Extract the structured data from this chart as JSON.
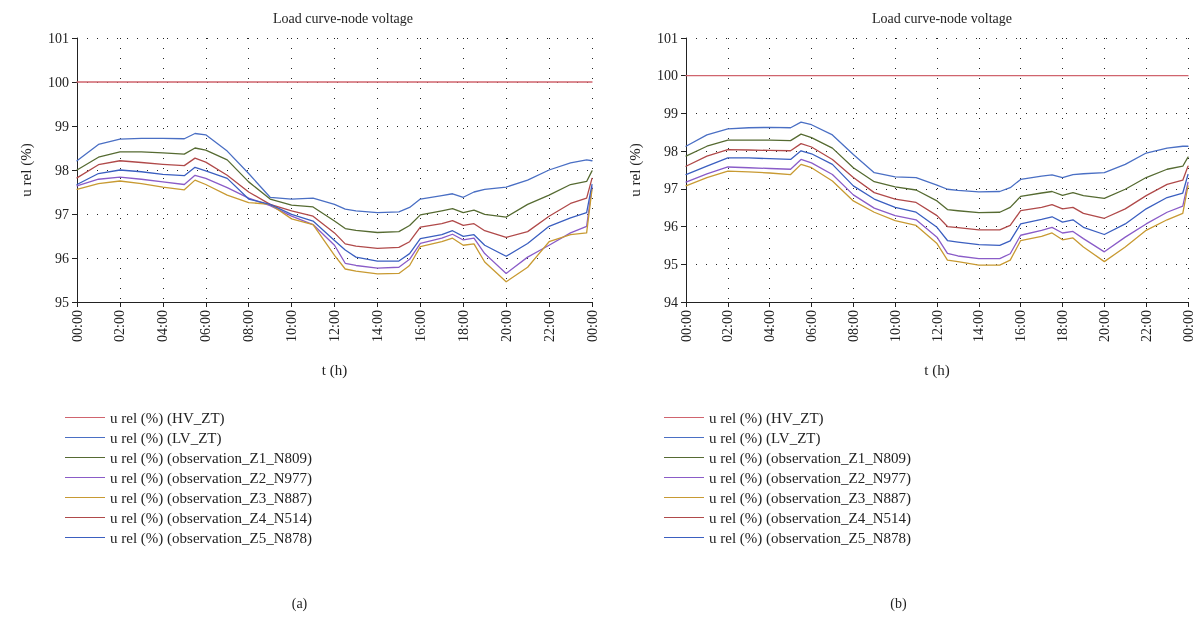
{
  "chart_data": [
    {
      "type": "line",
      "title": "Load curve-node voltage",
      "xlabel": "t (h)",
      "ylabel": "u rel (%)",
      "annotations": [
        "(a)"
      ],
      "x": [
        0,
        1,
        2,
        3,
        4,
        5,
        5.5,
        6,
        7,
        8,
        9,
        10,
        11,
        12,
        12.5,
        13,
        14,
        15,
        15.5,
        16,
        17,
        17.5,
        18,
        18.5,
        19,
        20,
        21,
        22,
        23,
        23.75,
        24
      ],
      "xlim": [
        0,
        24
      ],
      "xticks": [
        {
          "value": 0,
          "label": "00:00"
        },
        {
          "value": 2,
          "label": "02:00"
        },
        {
          "value": 4,
          "label": "04:00"
        },
        {
          "value": 6,
          "label": "06:00"
        },
        {
          "value": 8,
          "label": "08:00"
        },
        {
          "value": 10,
          "label": "10:00"
        },
        {
          "value": 12,
          "label": "12:00"
        },
        {
          "value": 14,
          "label": "14:00"
        },
        {
          "value": 16,
          "label": "16:00"
        },
        {
          "value": 18,
          "label": "18:00"
        },
        {
          "value": 20,
          "label": "20:00"
        },
        {
          "value": 22,
          "label": "22:00"
        },
        {
          "value": 24,
          "label": "00:00"
        }
      ],
      "ylim": [
        95,
        101
      ],
      "yticks": [
        95,
        96,
        97,
        98,
        99,
        100,
        101
      ],
      "grid": true,
      "legend": "bottom",
      "marker": "none",
      "line_style": "solid",
      "series": [
        {
          "name": "u rel (%) (HV_ZT)",
          "color": "#d0646e",
          "values": [
            100,
            100,
            100,
            100,
            100,
            100,
            100,
            100,
            100,
            100,
            100,
            100,
            100,
            100,
            100,
            100,
            100,
            100,
            100,
            100,
            100,
            100,
            100,
            100,
            100,
            100,
            100,
            100,
            100,
            100,
            100
          ]
        },
        {
          "name": "u rel (%) (LV_ZT)",
          "color": "#4a6fc4",
          "values": [
            98.21,
            98.58,
            98.7,
            98.72,
            98.72,
            98.71,
            98.83,
            98.8,
            98.43,
            97.92,
            97.38,
            97.34,
            97.36,
            97.22,
            97.11,
            97.07,
            97.03,
            97.05,
            97.15,
            97.34,
            97.42,
            97.46,
            97.38,
            97.5,
            97.56,
            97.61,
            97.77,
            98.0,
            98.16,
            98.23,
            98.21
          ]
        },
        {
          "name": "u rel (%) (observation_Z1_N809)",
          "color": "#566b32",
          "values": [
            98.0,
            98.29,
            98.41,
            98.41,
            98.39,
            98.36,
            98.5,
            98.45,
            98.23,
            97.73,
            97.34,
            97.2,
            97.16,
            96.84,
            96.67,
            96.63,
            96.58,
            96.6,
            96.74,
            96.98,
            97.07,
            97.12,
            97.03,
            97.09,
            96.99,
            96.93,
            97.22,
            97.43,
            97.67,
            97.74,
            97.98
          ]
        },
        {
          "name": "u rel (%) (observation_Z2_N977)",
          "color": "#8a5cc8",
          "values": [
            97.64,
            97.79,
            97.84,
            97.79,
            97.73,
            97.67,
            97.88,
            97.81,
            97.6,
            97.36,
            97.19,
            96.95,
            96.76,
            96.29,
            95.88,
            95.83,
            95.77,
            95.79,
            95.97,
            96.33,
            96.45,
            96.54,
            96.41,
            96.45,
            96.1,
            95.65,
            96.02,
            96.29,
            96.57,
            96.72,
            97.61
          ]
        },
        {
          "name": "u rel (%) (observation_Z3_N887)",
          "color": "#c89a32",
          "values": [
            97.56,
            97.69,
            97.75,
            97.69,
            97.61,
            97.55,
            97.77,
            97.67,
            97.43,
            97.26,
            97.22,
            96.89,
            96.76,
            96.06,
            95.75,
            95.7,
            95.64,
            95.65,
            95.83,
            96.26,
            96.37,
            96.45,
            96.29,
            96.32,
            95.91,
            95.46,
            95.79,
            96.37,
            96.53,
            96.57,
            97.56
          ]
        },
        {
          "name": "u rel (%) (observation_Z4_N514)",
          "color": "#b04a4a",
          "values": [
            97.82,
            98.12,
            98.21,
            98.17,
            98.13,
            98.1,
            98.27,
            98.18,
            97.88,
            97.5,
            97.22,
            97.07,
            96.95,
            96.57,
            96.32,
            96.27,
            96.22,
            96.24,
            96.37,
            96.7,
            96.78,
            96.85,
            96.74,
            96.78,
            96.62,
            96.47,
            96.6,
            96.95,
            97.24,
            97.36,
            97.81
          ]
        },
        {
          "name": "u rel (%) (observation_Z5_N878)",
          "color": "#3b5fc0",
          "values": [
            97.67,
            97.92,
            98.0,
            97.96,
            97.9,
            97.87,
            98.06,
            97.98,
            97.81,
            97.34,
            97.22,
            96.99,
            96.84,
            96.4,
            96.18,
            96.02,
            95.93,
            95.93,
            96.1,
            96.44,
            96.53,
            96.62,
            96.49,
            96.53,
            96.29,
            96.04,
            96.33,
            96.72,
            96.91,
            97.03,
            97.67
          ]
        }
      ]
    },
    {
      "type": "line",
      "title": "Load curve-node voltage",
      "xlabel": "t (h)",
      "ylabel": "u rel (%)",
      "annotations": [
        "(b)"
      ],
      "x": [
        0,
        1,
        2,
        3,
        4,
        5,
        5.5,
        6,
        7,
        8,
        9,
        10,
        11,
        12,
        12.5,
        13,
        14,
        15,
        15.5,
        16,
        17,
        17.5,
        18,
        18.5,
        19,
        20,
        21,
        22,
        23,
        23.75,
        24
      ],
      "xlim": [
        0,
        24
      ],
      "xticks": [
        {
          "value": 0,
          "label": "00:00"
        },
        {
          "value": 2,
          "label": "02:00"
        },
        {
          "value": 4,
          "label": "04:00"
        },
        {
          "value": 6,
          "label": "06:00"
        },
        {
          "value": 8,
          "label": "08:00"
        },
        {
          "value": 10,
          "label": "10:00"
        },
        {
          "value": 12,
          "label": "12:00"
        },
        {
          "value": 14,
          "label": "14:00"
        },
        {
          "value": 16,
          "label": "16:00"
        },
        {
          "value": 18,
          "label": "18:00"
        },
        {
          "value": 20,
          "label": "20:00"
        },
        {
          "value": 22,
          "label": "22:00"
        },
        {
          "value": 24,
          "label": "00:00"
        }
      ],
      "ylim": [
        94,
        101
      ],
      "yticks": [
        94,
        95,
        96,
        97,
        98,
        99,
        100,
        101
      ],
      "grid": true,
      "legend": "bottom",
      "marker": "none",
      "line_style": "solid",
      "series": [
        {
          "name": "u rel (%) (HV_ZT)",
          "color": "#d0646e",
          "values": [
            100,
            100,
            100,
            100,
            100,
            100,
            100,
            100,
            100,
            100,
            100,
            100,
            100,
            100,
            100,
            100,
            100,
            100,
            100,
            100,
            100,
            100,
            100,
            100,
            100,
            100,
            100,
            100,
            100,
            100,
            100
          ]
        },
        {
          "name": "u rel (%) (LV_ZT)",
          "color": "#4a6fc4",
          "values": [
            98.13,
            98.43,
            98.59,
            98.62,
            98.63,
            98.62,
            98.77,
            98.7,
            98.43,
            97.91,
            97.43,
            97.32,
            97.3,
            97.1,
            96.99,
            96.96,
            96.92,
            96.93,
            97.03,
            97.25,
            97.34,
            97.37,
            97.3,
            97.38,
            97.4,
            97.43,
            97.65,
            97.95,
            98.08,
            98.13,
            98.13
          ]
        },
        {
          "name": "u rel (%) (observation_Z1_N809)",
          "color": "#566b32",
          "values": [
            97.87,
            98.13,
            98.29,
            98.29,
            98.29,
            98.28,
            98.45,
            98.36,
            98.08,
            97.56,
            97.19,
            97.05,
            96.97,
            96.68,
            96.45,
            96.42,
            96.37,
            96.38,
            96.51,
            96.8,
            96.89,
            96.93,
            96.83,
            96.9,
            96.82,
            96.75,
            96.99,
            97.3,
            97.52,
            97.6,
            97.84
          ]
        },
        {
          "name": "u rel (%) (observation_Z2_N977)",
          "color": "#8a5cc8",
          "values": [
            97.18,
            97.4,
            97.58,
            97.56,
            97.54,
            97.52,
            97.78,
            97.69,
            97.38,
            96.84,
            96.49,
            96.29,
            96.18,
            95.72,
            95.29,
            95.22,
            95.15,
            95.15,
            95.28,
            95.77,
            95.9,
            95.98,
            95.83,
            95.87,
            95.68,
            95.33,
            95.72,
            96.07,
            96.38,
            96.54,
            97.17
          ]
        },
        {
          "name": "u rel (%) (observation_Z3_N887)",
          "color": "#c89a32",
          "values": [
            97.08,
            97.3,
            97.47,
            97.45,
            97.42,
            97.38,
            97.65,
            97.56,
            97.21,
            96.68,
            96.38,
            96.16,
            96.03,
            95.55,
            95.11,
            95.07,
            94.98,
            94.98,
            95.11,
            95.63,
            95.74,
            95.83,
            95.65,
            95.7,
            95.46,
            95.07,
            95.46,
            95.9,
            96.18,
            96.35,
            97.08
          ]
        },
        {
          "name": "u rel (%) (observation_Z4_N514)",
          "color": "#b04a4a",
          "values": [
            97.6,
            97.87,
            98.04,
            98.03,
            98.02,
            98.01,
            98.2,
            98.11,
            97.78,
            97.3,
            96.9,
            96.73,
            96.64,
            96.29,
            96.0,
            95.97,
            95.91,
            95.91,
            96.03,
            96.42,
            96.51,
            96.58,
            96.47,
            96.51,
            96.35,
            96.22,
            96.47,
            96.82,
            97.12,
            97.23,
            97.6
          ]
        },
        {
          "name": "u rel (%) (observation_Z5_N878)",
          "color": "#3b5fc0",
          "values": [
            97.38,
            97.6,
            97.82,
            97.82,
            97.8,
            97.78,
            98.01,
            97.93,
            97.65,
            97.08,
            96.73,
            96.51,
            96.38,
            95.98,
            95.63,
            95.59,
            95.52,
            95.5,
            95.62,
            96.07,
            96.19,
            96.26,
            96.12,
            96.18,
            95.98,
            95.79,
            96.07,
            96.47,
            96.77,
            96.89,
            97.38
          ]
        }
      ]
    }
  ]
}
